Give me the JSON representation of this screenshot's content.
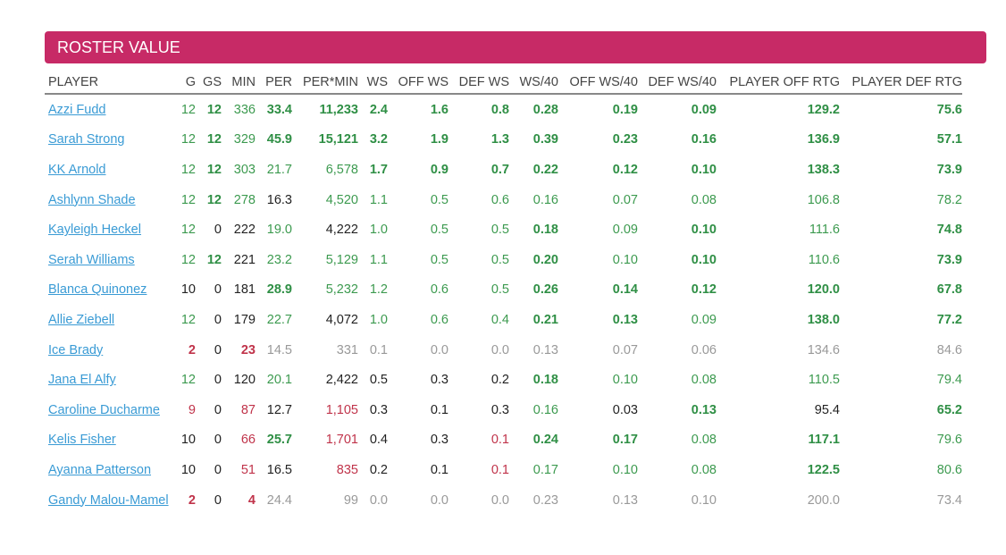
{
  "banner": {
    "title": "ROSTER VALUE"
  },
  "table": {
    "columns": [
      "PLAYER",
      "G",
      "GS",
      "MIN",
      "PER",
      "PER*MIN",
      "WS",
      "OFF WS",
      "DEF WS",
      "WS/40",
      "OFF WS/40",
      "DEF WS/40",
      "PLAYER OFF RTG",
      "PLAYER DEF RTG"
    ],
    "rows": [
      {
        "cells": [
          "Azzi Fudd",
          "12",
          "12",
          "336",
          "33.4",
          "11,233",
          "2.4",
          "1.6",
          "0.8",
          "0.28",
          "0.19",
          "0.09",
          "129.2",
          "75.6"
        ],
        "styles": [
          "link",
          "g",
          "G",
          "g",
          "G",
          "G",
          "G",
          "G",
          "G",
          "G",
          "G",
          "G",
          "G",
          "G"
        ]
      },
      {
        "cells": [
          "Sarah Strong",
          "12",
          "12",
          "329",
          "45.9",
          "15,121",
          "3.2",
          "1.9",
          "1.3",
          "0.39",
          "0.23",
          "0.16",
          "136.9",
          "57.1"
        ],
        "styles": [
          "link",
          "g",
          "G",
          "g",
          "G",
          "G",
          "G",
          "G",
          "G",
          "G",
          "G",
          "G",
          "G",
          "G"
        ]
      },
      {
        "cells": [
          "KK Arnold",
          "12",
          "12",
          "303",
          "21.7",
          "6,578",
          "1.7",
          "0.9",
          "0.7",
          "0.22",
          "0.12",
          "0.10",
          "138.3",
          "73.9"
        ],
        "styles": [
          "link",
          "g",
          "G",
          "g",
          "g",
          "g",
          "G",
          "G",
          "G",
          "G",
          "G",
          "G",
          "G",
          "G"
        ]
      },
      {
        "cells": [
          "Ashlynn Shade",
          "12",
          "12",
          "278",
          "16.3",
          "4,520",
          "1.1",
          "0.5",
          "0.6",
          "0.16",
          "0.07",
          "0.08",
          "106.8",
          "78.2"
        ],
        "styles": [
          "link",
          "g",
          "G",
          "g",
          "k",
          "g",
          "g",
          "g",
          "g",
          "g",
          "g",
          "g",
          "g",
          "g"
        ]
      },
      {
        "cells": [
          "Kayleigh Heckel",
          "12",
          "0",
          "222",
          "19.0",
          "4,222",
          "1.0",
          "0.5",
          "0.5",
          "0.18",
          "0.09",
          "0.10",
          "111.6",
          "74.8"
        ],
        "styles": [
          "link",
          "g",
          "k",
          "k",
          "g",
          "k",
          "g",
          "g",
          "g",
          "G",
          "g",
          "G",
          "g",
          "G"
        ]
      },
      {
        "cells": [
          "Serah Williams",
          "12",
          "12",
          "221",
          "23.2",
          "5,129",
          "1.1",
          "0.5",
          "0.5",
          "0.20",
          "0.10",
          "0.10",
          "110.6",
          "73.9"
        ],
        "styles": [
          "link",
          "g",
          "G",
          "k",
          "g",
          "g",
          "g",
          "g",
          "g",
          "G",
          "g",
          "G",
          "g",
          "G"
        ]
      },
      {
        "cells": [
          "Blanca Quinonez",
          "10",
          "0",
          "181",
          "28.9",
          "5,232",
          "1.2",
          "0.6",
          "0.5",
          "0.26",
          "0.14",
          "0.12",
          "120.0",
          "67.8"
        ],
        "styles": [
          "link",
          "k",
          "k",
          "k",
          "G",
          "g",
          "g",
          "g",
          "g",
          "G",
          "G",
          "G",
          "G",
          "G"
        ]
      },
      {
        "cells": [
          "Allie Ziebell",
          "12",
          "0",
          "179",
          "22.7",
          "4,072",
          "1.0",
          "0.6",
          "0.4",
          "0.21",
          "0.13",
          "0.09",
          "138.0",
          "77.2"
        ],
        "styles": [
          "link",
          "g",
          "k",
          "k",
          "g",
          "k",
          "g",
          "g",
          "g",
          "G",
          "G",
          "g",
          "G",
          "G"
        ]
      },
      {
        "cells": [
          "Ice Brady",
          "2",
          "0",
          "23",
          "14.5",
          "331",
          "0.1",
          "0.0",
          "0.0",
          "0.13",
          "0.07",
          "0.06",
          "134.6",
          "84.6"
        ],
        "styles": [
          "link",
          "R",
          "k",
          "R",
          "m",
          "m",
          "m",
          "m",
          "m",
          "m",
          "m",
          "m",
          "m",
          "m"
        ]
      },
      {
        "cells": [
          "Jana El Alfy",
          "12",
          "0",
          "120",
          "20.1",
          "2,422",
          "0.5",
          "0.3",
          "0.2",
          "0.18",
          "0.10",
          "0.08",
          "110.5",
          "79.4"
        ],
        "styles": [
          "link",
          "g",
          "k",
          "k",
          "g",
          "k",
          "k",
          "k",
          "k",
          "G",
          "g",
          "g",
          "g",
          "g"
        ]
      },
      {
        "cells": [
          "Caroline Ducharme",
          "9",
          "0",
          "87",
          "12.7",
          "1,105",
          "0.3",
          "0.1",
          "0.3",
          "0.16",
          "0.03",
          "0.13",
          "95.4",
          "65.2"
        ],
        "styles": [
          "link",
          "r",
          "k",
          "r",
          "k",
          "r",
          "k",
          "k",
          "k",
          "g",
          "k",
          "G",
          "k",
          "G"
        ]
      },
      {
        "cells": [
          "Kelis Fisher",
          "10",
          "0",
          "66",
          "25.7",
          "1,701",
          "0.4",
          "0.3",
          "0.1",
          "0.24",
          "0.17",
          "0.08",
          "117.1",
          "79.6"
        ],
        "styles": [
          "link",
          "k",
          "k",
          "r",
          "G",
          "r",
          "k",
          "k",
          "r",
          "G",
          "G",
          "g",
          "G",
          "g"
        ]
      },
      {
        "cells": [
          "Ayanna Patterson",
          "10",
          "0",
          "51",
          "16.5",
          "835",
          "0.2",
          "0.1",
          "0.1",
          "0.17",
          "0.10",
          "0.08",
          "122.5",
          "80.6"
        ],
        "styles": [
          "link",
          "k",
          "k",
          "r",
          "k",
          "r",
          "k",
          "k",
          "r",
          "g",
          "g",
          "g",
          "G",
          "g"
        ]
      },
      {
        "cells": [
          "Gandy Malou-Mamel",
          "2",
          "0",
          "4",
          "24.4",
          "99",
          "0.0",
          "0.0",
          "0.0",
          "0.23",
          "0.13",
          "0.10",
          "200.0",
          "73.4"
        ],
        "styles": [
          "link",
          "R",
          "k",
          "R",
          "m",
          "m",
          "m",
          "m",
          "m",
          "m",
          "m",
          "m",
          "m",
          "m"
        ]
      }
    ]
  }
}
